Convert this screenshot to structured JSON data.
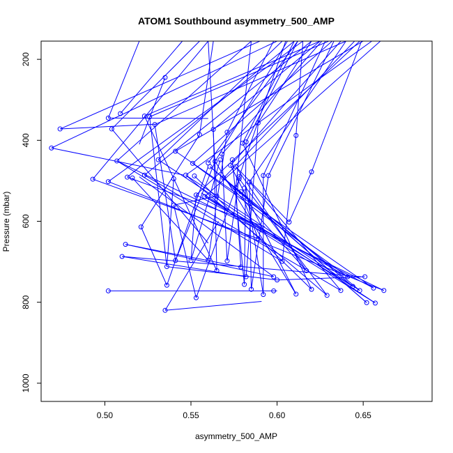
{
  "chart_data": {
    "type": "line",
    "title": "ATOM1 Southbound asymmetry_500_AMP",
    "xlabel": "asymmetry_500_AMP",
    "ylabel": "Pressure (mbar)",
    "xlim": [
      0.463,
      0.69
    ],
    "ylim": [
      1045,
      155
    ],
    "y_inverted": true,
    "x_ticks": [
      0.5,
      0.55,
      0.6,
      0.65
    ],
    "x_tick_labels": [
      "0.50",
      "0.55",
      "0.60",
      "0.65"
    ],
    "y_ticks": [
      200,
      400,
      600,
      800,
      1000
    ],
    "y_tick_labels": [
      "200",
      "400",
      "600",
      "800",
      "1000"
    ],
    "grid": false,
    "series_color": "#0000ff",
    "points": [
      {
        "x": 0.474,
        "y": 372
      },
      {
        "x": 0.469,
        "y": 419
      },
      {
        "x": 0.493,
        "y": 496
      },
      {
        "x": 0.502,
        "y": 345
      },
      {
        "x": 0.509,
        "y": 334
      },
      {
        "x": 0.504,
        "y": 372
      },
      {
        "x": 0.507,
        "y": 451
      },
      {
        "x": 0.502,
        "y": 502
      },
      {
        "x": 0.513,
        "y": 491
      },
      {
        "x": 0.516,
        "y": 493
      },
      {
        "x": 0.523,
        "y": 340
      },
      {
        "x": 0.526,
        "y": 342
      },
      {
        "x": 0.529,
        "y": 361
      },
      {
        "x": 0.531,
        "y": 448
      },
      {
        "x": 0.523,
        "y": 486
      },
      {
        "x": 0.535,
        "y": 245
      },
      {
        "x": 0.541,
        "y": 427
      },
      {
        "x": 0.547,
        "y": 486
      },
      {
        "x": 0.54,
        "y": 495
      },
      {
        "x": 0.551,
        "y": 457
      },
      {
        "x": 0.552,
        "y": 488
      },
      {
        "x": 0.553,
        "y": 535
      },
      {
        "x": 0.555,
        "y": 386
      },
      {
        "x": 0.558,
        "y": 539
      },
      {
        "x": 0.56,
        "y": 456
      },
      {
        "x": 0.561,
        "y": 465
      },
      {
        "x": 0.563,
        "y": 373
      },
      {
        "x": 0.564,
        "y": 452
      },
      {
        "x": 0.565,
        "y": 538
      },
      {
        "x": 0.567,
        "y": 448
      },
      {
        "x": 0.568,
        "y": 434
      },
      {
        "x": 0.569,
        "y": 493
      },
      {
        "x": 0.571,
        "y": 380
      },
      {
        "x": 0.573,
        "y": 462
      },
      {
        "x": 0.574,
        "y": 448
      },
      {
        "x": 0.576,
        "y": 517
      },
      {
        "x": 0.576,
        "y": 465
      },
      {
        "x": 0.578,
        "y": 490
      },
      {
        "x": 0.578,
        "y": 495
      },
      {
        "x": 0.579,
        "y": 527
      },
      {
        "x": 0.58,
        "y": 407
      },
      {
        "x": 0.581,
        "y": 518
      },
      {
        "x": 0.582,
        "y": 404
      },
      {
        "x": 0.584,
        "y": 503
      },
      {
        "x": 0.589,
        "y": 357
      },
      {
        "x": 0.592,
        "y": 487
      },
      {
        "x": 0.595,
        "y": 487
      },
      {
        "x": 0.589,
        "y": 643
      },
      {
        "x": 0.607,
        "y": 602
      },
      {
        "x": 0.611,
        "y": 388
      },
      {
        "x": 0.62,
        "y": 478
      },
      {
        "x": 0.521,
        "y": 614
      },
      {
        "x": 0.512,
        "y": 657
      },
      {
        "x": 0.51,
        "y": 687
      },
      {
        "x": 0.502,
        "y": 772
      },
      {
        "x": 0.536,
        "y": 712
      },
      {
        "x": 0.536,
        "y": 758
      },
      {
        "x": 0.535,
        "y": 820
      },
      {
        "x": 0.541,
        "y": 697
      },
      {
        "x": 0.55,
        "y": 697
      },
      {
        "x": 0.553,
        "y": 789
      },
      {
        "x": 0.56,
        "y": 696
      },
      {
        "x": 0.565,
        "y": 722
      },
      {
        "x": 0.571,
        "y": 698
      },
      {
        "x": 0.579,
        "y": 713
      },
      {
        "x": 0.581,
        "y": 756
      },
      {
        "x": 0.582,
        "y": 737
      },
      {
        "x": 0.585,
        "y": 768
      },
      {
        "x": 0.592,
        "y": 781
      },
      {
        "x": 0.598,
        "y": 737
      },
      {
        "x": 0.6,
        "y": 745
      },
      {
        "x": 0.598,
        "y": 772
      },
      {
        "x": 0.603,
        "y": 699
      },
      {
        "x": 0.611,
        "y": 780
      },
      {
        "x": 0.617,
        "y": 722
      },
      {
        "x": 0.62,
        "y": 768
      },
      {
        "x": 0.629,
        "y": 783
      },
      {
        "x": 0.637,
        "y": 771
      },
      {
        "x": 0.641,
        "y": 737
      },
      {
        "x": 0.644,
        "y": 761
      },
      {
        "x": 0.648,
        "y": 771
      },
      {
        "x": 0.651,
        "y": 737
      },
      {
        "x": 0.652,
        "y": 801
      },
      {
        "x": 0.656,
        "y": 765
      },
      {
        "x": 0.657,
        "y": 802
      },
      {
        "x": 0.662,
        "y": 771
      },
      {
        "x": 0.54,
        "y": 560
      }
    ],
    "segments": [
      [
        0.474,
        372,
        0.59,
        155
      ],
      [
        0.469,
        419,
        0.6,
        155
      ],
      [
        0.493,
        496,
        0.56,
        155
      ],
      [
        0.502,
        345,
        0.52,
        155
      ],
      [
        0.509,
        334,
        0.545,
        155
      ],
      [
        0.504,
        372,
        0.555,
        155
      ],
      [
        0.507,
        451,
        0.585,
        155
      ],
      [
        0.502,
        502,
        0.615,
        155
      ],
      [
        0.513,
        491,
        0.61,
        155
      ],
      [
        0.523,
        340,
        0.625,
        155
      ],
      [
        0.526,
        342,
        0.63,
        155
      ],
      [
        0.529,
        361,
        0.64,
        155
      ],
      [
        0.531,
        448,
        0.603,
        155
      ],
      [
        0.523,
        486,
        0.62,
        155
      ],
      [
        0.535,
        245,
        0.52,
        410
      ],
      [
        0.541,
        427,
        0.65,
        155
      ],
      [
        0.547,
        486,
        0.655,
        155
      ],
      [
        0.551,
        457,
        0.632,
        155
      ],
      [
        0.553,
        535,
        0.648,
        155
      ],
      [
        0.558,
        539,
        0.66,
        155
      ],
      [
        0.56,
        456,
        0.612,
        155
      ],
      [
        0.563,
        373,
        0.625,
        155
      ],
      [
        0.564,
        452,
        0.606,
        155
      ],
      [
        0.568,
        434,
        0.626,
        155
      ],
      [
        0.571,
        380,
        0.598,
        155
      ],
      [
        0.573,
        462,
        0.637,
        155
      ],
      [
        0.576,
        517,
        0.585,
        155
      ],
      [
        0.58,
        407,
        0.61,
        155
      ],
      [
        0.582,
        404,
        0.612,
        155
      ],
      [
        0.589,
        357,
        0.62,
        155
      ],
      [
        0.592,
        487,
        0.628,
        155
      ],
      [
        0.595,
        487,
        0.633,
        155
      ],
      [
        0.611,
        388,
        0.615,
        155
      ],
      [
        0.62,
        478,
        0.649,
        155
      ],
      [
        0.555,
        386,
        0.563,
        155
      ],
      [
        0.578,
        490,
        0.605,
        155
      ],
      [
        0.584,
        503,
        0.64,
        155
      ],
      [
        0.569,
        493,
        0.645,
        155
      ],
      [
        0.565,
        538,
        0.56,
        155
      ],
      [
        0.474,
        372,
        0.53,
        360
      ],
      [
        0.469,
        419,
        0.546,
        486
      ],
      [
        0.493,
        496,
        0.589,
        643
      ],
      [
        0.502,
        345,
        0.56,
        346
      ],
      [
        0.504,
        372,
        0.56,
        654
      ],
      [
        0.507,
        451,
        0.603,
        699
      ],
      [
        0.513,
        491,
        0.593,
        614
      ],
      [
        0.516,
        493,
        0.56,
        696
      ],
      [
        0.502,
        502,
        0.662,
        771
      ],
      [
        0.521,
        614,
        0.555,
        386
      ],
      [
        0.512,
        657,
        0.579,
        713
      ],
      [
        0.51,
        687,
        0.582,
        737
      ],
      [
        0.502,
        772,
        0.6,
        772
      ],
      [
        0.536,
        712,
        0.54,
        495
      ],
      [
        0.536,
        758,
        0.56,
        465
      ],
      [
        0.535,
        820,
        0.591,
        798
      ],
      [
        0.541,
        697,
        0.564,
        452
      ],
      [
        0.55,
        697,
        0.553,
        535
      ],
      [
        0.553,
        789,
        0.578,
        495
      ],
      [
        0.56,
        696,
        0.571,
        380
      ],
      [
        0.565,
        722,
        0.563,
        373
      ],
      [
        0.571,
        698,
        0.578,
        490
      ],
      [
        0.579,
        713,
        0.576,
        517
      ],
      [
        0.581,
        756,
        0.582,
        404
      ],
      [
        0.582,
        737,
        0.589,
        357
      ],
      [
        0.585,
        768,
        0.584,
        503
      ],
      [
        0.592,
        781,
        0.582,
        518
      ],
      [
        0.598,
        737,
        0.52,
        490
      ],
      [
        0.6,
        745,
        0.536,
        712
      ],
      [
        0.603,
        699,
        0.611,
        388
      ],
      [
        0.611,
        780,
        0.573,
        462
      ],
      [
        0.617,
        722,
        0.576,
        465
      ],
      [
        0.62,
        768,
        0.552,
        488
      ],
      [
        0.629,
        783,
        0.547,
        486
      ],
      [
        0.637,
        771,
        0.523,
        486
      ],
      [
        0.641,
        737,
        0.558,
        539
      ],
      [
        0.644,
        761,
        0.556,
        530
      ],
      [
        0.648,
        771,
        0.561,
        465
      ],
      [
        0.651,
        737,
        0.6,
        745
      ],
      [
        0.652,
        801,
        0.569,
        493
      ],
      [
        0.656,
        765,
        0.541,
        427
      ],
      [
        0.657,
        802,
        0.531,
        448
      ],
      [
        0.662,
        771,
        0.507,
        451
      ],
      [
        0.589,
        643,
        0.579,
        527
      ],
      [
        0.607,
        602,
        0.576,
        465
      ],
      [
        0.62,
        478,
        0.607,
        602
      ],
      [
        0.54,
        560,
        0.553,
        789
      ],
      [
        0.54,
        560,
        0.565,
        538
      ],
      [
        0.521,
        614,
        0.536,
        758
      ],
      [
        0.512,
        657,
        0.598,
        737
      ],
      [
        0.51,
        687,
        0.649,
        737
      ],
      [
        0.566,
        600,
        0.535,
        820
      ],
      [
        0.568,
        434,
        0.571,
        698
      ],
      [
        0.574,
        448,
        0.581,
        756
      ],
      [
        0.567,
        448,
        0.55,
        697
      ],
      [
        0.58,
        407,
        0.62,
        768
      ],
      [
        0.578,
        495,
        0.629,
        783
      ],
      [
        0.595,
        487,
        0.585,
        768
      ],
      [
        0.592,
        487,
        0.592,
        781
      ],
      [
        0.584,
        503,
        0.637,
        771
      ],
      [
        0.576,
        517,
        0.644,
        761
      ],
      [
        0.569,
        493,
        0.617,
        722
      ],
      [
        0.561,
        465,
        0.652,
        801
      ],
      [
        0.564,
        452,
        0.611,
        780
      ],
      [
        0.558,
        539,
        0.657,
        802
      ],
      [
        0.553,
        535,
        0.656,
        765
      ],
      [
        0.551,
        457,
        0.641,
        737
      ],
      [
        0.547,
        486,
        0.648,
        771
      ],
      [
        0.529,
        361,
        0.541,
        697
      ],
      [
        0.526,
        342,
        0.536,
        712
      ],
      [
        0.523,
        340,
        0.565,
        722
      ]
    ]
  }
}
